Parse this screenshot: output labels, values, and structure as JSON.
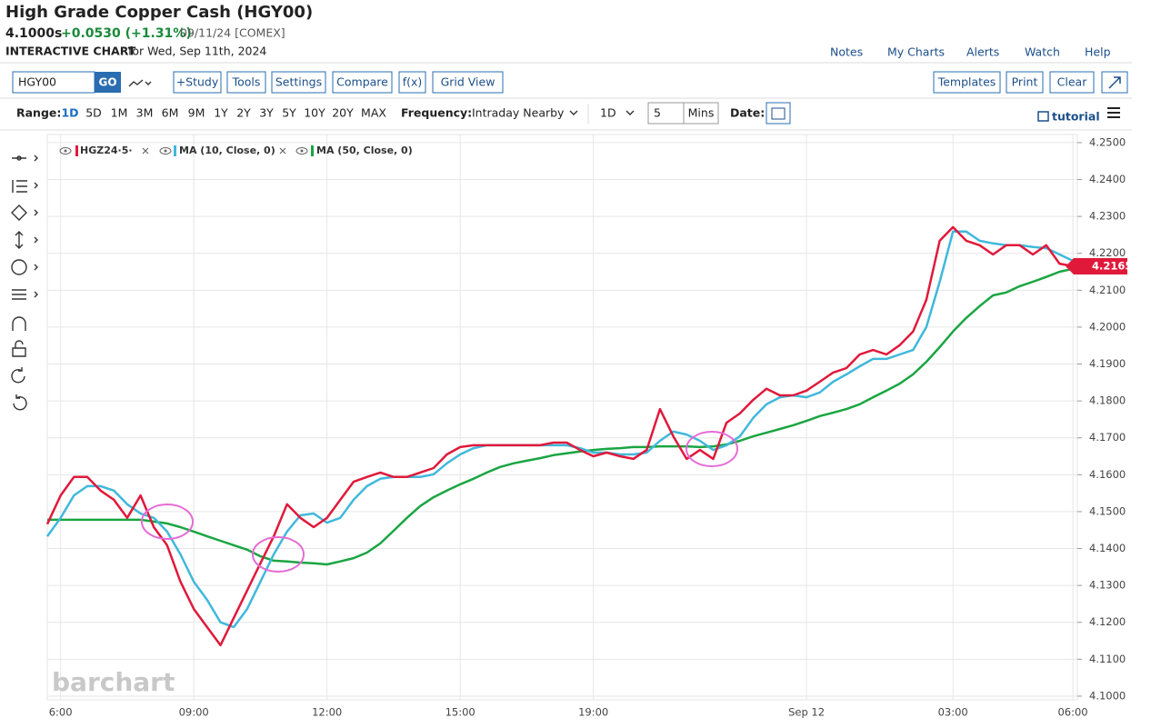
{
  "header": {
    "title": "High Grade Copper Cash (HGY00)",
    "price": "4.1000s",
    "change": "+0.0530 (+1.31%)",
    "date_exchange": "09/11/24 [COMEX]",
    "chart_label": "INTERACTIVE CHART",
    "chart_for": "for Wed, Sep 11th, 2024"
  },
  "links": [
    "Notes",
    "My Charts",
    "Alerts",
    "Watch",
    "Help"
  ],
  "toolbar": {
    "symbol": "HGY00",
    "go": "GO",
    "buttons": [
      "+Study",
      "Tools",
      "Settings",
      "Compare",
      "f(x)",
      "Grid View"
    ],
    "right_buttons": [
      "Templates",
      "Print",
      "Clear"
    ]
  },
  "range_bar": {
    "range_label": "Range:",
    "ranges": [
      "1D",
      "5D",
      "1M",
      "3M",
      "6M",
      "9M",
      "1Y",
      "2Y",
      "3Y",
      "5Y",
      "10Y",
      "20Y",
      "MAX"
    ],
    "frequency_label": "Frequency:",
    "frequency": "Intraday Nearby",
    "period": "1D",
    "interval": "5",
    "unit": "Mins",
    "date_label": "Date:",
    "tutorial": "tutorial"
  },
  "watermark": "barchart",
  "chart_data": {
    "type": "line",
    "categories": [
      null,
      "6:00",
      null,
      null,
      null,
      null,
      null,
      null,
      null,
      null,
      null,
      "09:00",
      null,
      null,
      null,
      null,
      null,
      null,
      null,
      null,
      null,
      "12:00",
      null,
      null,
      null,
      null,
      null,
      null,
      null,
      null,
      null,
      "15:00",
      null,
      null,
      null,
      null,
      null,
      null,
      null,
      null,
      null,
      "19:00",
      null,
      null,
      null,
      null,
      null,
      null,
      null,
      null,
      null,
      null,
      null,
      null,
      null,
      null,
      null,
      "Sep 12",
      null,
      null,
      null,
      null,
      null,
      null,
      null,
      null,
      null,
      null,
      "03:00",
      null,
      null,
      null,
      null,
      null,
      null,
      null,
      null,
      "06:00"
    ],
    "series": [
      {
        "name": "HGZ24·5·",
        "color": "#e0193b",
        "values": [
          4.1466,
          4.1544,
          4.1594,
          4.1594,
          4.1557,
          4.1532,
          4.1483,
          4.1544,
          4.1458,
          4.1409,
          4.131,
          4.1236,
          4.1187,
          4.1138,
          4.1212,
          4.1286,
          4.136,
          4.1433,
          4.152,
          4.1483,
          4.1458,
          4.1483,
          4.1532,
          4.1581,
          4.1594,
          4.1606,
          4.1594,
          4.1594,
          4.1606,
          4.1618,
          4.1655,
          4.1675,
          4.168,
          4.168,
          4.168,
          4.168,
          4.168,
          4.168,
          4.1687,
          4.1687,
          4.1667,
          4.165,
          4.166,
          4.165,
          4.1643,
          4.1667,
          4.1778,
          4.1704,
          4.1643,
          4.1667,
          4.1643,
          4.1741,
          4.1766,
          4.1803,
          4.1833,
          4.1815,
          4.1815,
          4.1828,
          4.1852,
          4.1877,
          4.1889,
          4.1926,
          4.1938,
          4.1926,
          4.1951,
          4.1988,
          4.2074,
          4.2234,
          4.2271,
          4.2234,
          4.2222,
          4.2197,
          4.2222,
          4.2222,
          4.2197,
          4.2222,
          4.2172,
          4.2165
        ]
      },
      {
        "name": "MA (10, Close, 0)",
        "color": "#41b8dc",
        "values": [
          4.1433,
          4.1483,
          4.1544,
          4.1569,
          4.1569,
          4.1557,
          4.152,
          4.1495,
          4.1483,
          4.1446,
          4.1384,
          4.131,
          4.1261,
          4.12,
          4.1187,
          4.1236,
          4.131,
          4.1384,
          4.1446,
          4.149,
          4.1495,
          4.147,
          4.1483,
          4.1532,
          4.1569,
          4.1589,
          4.1594,
          4.1594,
          4.1594,
          4.1601,
          4.1631,
          4.1655,
          4.1672,
          4.168,
          4.168,
          4.168,
          4.168,
          4.168,
          4.168,
          4.168,
          4.1672,
          4.166,
          4.166,
          4.1655,
          4.1655,
          4.166,
          4.1692,
          4.1717,
          4.1709,
          4.1692,
          4.1667,
          4.168,
          4.1704,
          4.1754,
          4.1791,
          4.181,
          4.1815,
          4.181,
          4.1823,
          4.1852,
          4.1872,
          4.1894,
          4.1914,
          4.1914,
          4.1926,
          4.1938,
          4.2,
          4.2123,
          4.2259,
          4.2259,
          4.2234,
          4.2227,
          4.2222,
          4.2222,
          4.2217,
          4.2214,
          4.2197,
          4.218
        ]
      },
      {
        "name": "MA (50, Close, 0)",
        "color": "#1aa542",
        "values": [
          4.1478,
          4.1478,
          4.1478,
          4.1478,
          4.1478,
          4.1478,
          4.1478,
          4.1478,
          4.1473,
          4.1468,
          4.1458,
          4.1446,
          4.1433,
          4.1421,
          4.1409,
          4.1397,
          4.1379,
          4.1367,
          4.1365,
          4.1362,
          4.136,
          4.1357,
          4.1365,
          4.1374,
          4.1389,
          4.1414,
          4.1448,
          4.1483,
          4.1515,
          4.1539,
          4.1557,
          4.1574,
          4.1589,
          4.1606,
          4.1621,
          4.1631,
          4.1638,
          4.1645,
          4.1653,
          4.1658,
          4.1663,
          4.1667,
          4.167,
          4.1672,
          4.1675,
          4.1675,
          4.1677,
          4.1677,
          4.1677,
          4.1675,
          4.1677,
          4.1682,
          4.1692,
          4.1704,
          4.1714,
          4.1724,
          4.1734,
          4.1746,
          4.1759,
          4.1768,
          4.1778,
          4.1791,
          4.181,
          4.1828,
          4.1847,
          4.1872,
          4.1906,
          4.1946,
          4.1988,
          4.2025,
          4.2057,
          4.2086,
          4.2094,
          4.2111,
          4.2123,
          4.2136,
          4.215,
          4.2158
        ]
      }
    ],
    "ylim": [
      4.099,
      4.2522
    ],
    "yticks": [
      {
        "value": 4.1,
        "label": "4.1000"
      },
      {
        "value": 4.11,
        "label": "4.1100"
      },
      {
        "value": 4.12,
        "label": "4.1200"
      },
      {
        "value": 4.13,
        "label": "4.1300"
      },
      {
        "value": 4.14,
        "label": "4.1400"
      },
      {
        "value": 4.15,
        "label": "4.1500"
      },
      {
        "value": 4.16,
        "label": "4.1600"
      },
      {
        "value": 4.17,
        "label": "4.1700"
      },
      {
        "value": 4.18,
        "label": "4.1800"
      },
      {
        "value": 4.19,
        "label": "4.1900"
      },
      {
        "value": 4.2,
        "label": "4.2000"
      },
      {
        "value": 4.21,
        "label": "4.2100"
      },
      {
        "value": 4.22,
        "label": "4.2200"
      },
      {
        "value": 4.23,
        "label": "4.2300"
      },
      {
        "value": 4.24,
        "label": "4.2400"
      },
      {
        "value": 4.25,
        "label": "4.2500"
      }
    ],
    "grid": true,
    "last_value": 4.2165
  }
}
